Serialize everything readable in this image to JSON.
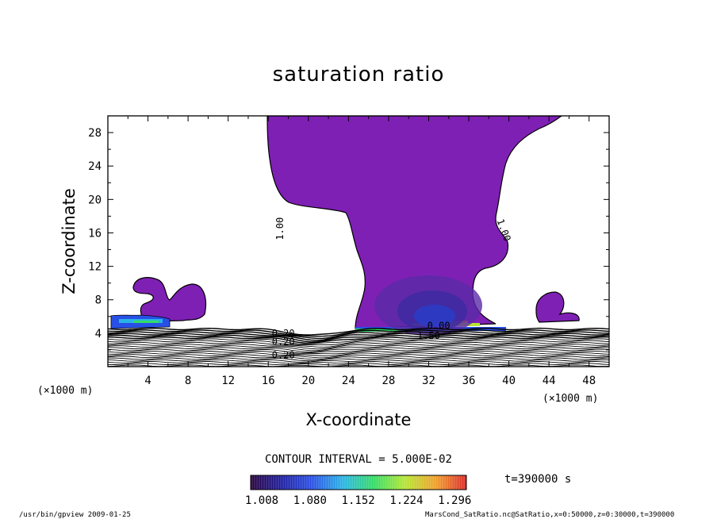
{
  "chart_data": {
    "type": "contour",
    "title": "saturation ratio",
    "xlabel": "X-coordinate",
    "ylabel": "Z-coordinate",
    "x_unit": "(×1000 m)",
    "z_unit": "(×1000 m)",
    "xlim": [
      0,
      50
    ],
    "zlim": [
      0,
      30
    ],
    "x_ticks": [
      "4",
      "8",
      "12",
      "16",
      "20",
      "24",
      "28",
      "32",
      "36",
      "40",
      "44",
      "48"
    ],
    "z_ticks": [
      "4",
      "8",
      "12",
      "16",
      "20",
      "24",
      "28"
    ],
    "contour_interval_label": "CONTOUR INTERVAL = 5.000E-02",
    "colorbar": {
      "range": [
        1.008,
        1.33
      ],
      "labels": [
        "1.008",
        "1.080",
        "1.152",
        "1.224",
        "1.296"
      ],
      "colors": [
        "#28003c",
        "#1e1ea0",
        "#2850e6",
        "#28b4e6",
        "#32dc64",
        "#b4e632",
        "#f0a028",
        "#dc2828"
      ]
    },
    "fill_color": "#7f20b5",
    "contour_labels": [
      {
        "text": "1.00",
        "x": 17.5,
        "z": 16.5
      },
      {
        "text": "1.00",
        "x": 39.2,
        "z": 16.2
      },
      {
        "text": "0.20",
        "x": 17.5,
        "z": 3.6
      },
      {
        "text": "0.20",
        "x": 17.5,
        "z": 2.6
      },
      {
        "text": "0.20",
        "x": 17.5,
        "z": 1.0
      },
      {
        "text": "1.50",
        "x": 32.0,
        "z": 3.3
      },
      {
        "text": "0.00",
        "x": 33.0,
        "z": 4.5
      }
    ],
    "time_label": "t=390000 s"
  },
  "footer": {
    "left": "/usr/bin/gpview  2009-01-25",
    "right": "MarsCond_SatRatio.nc@SatRatio,x=0:50000,z=0:30000,t=390000"
  }
}
